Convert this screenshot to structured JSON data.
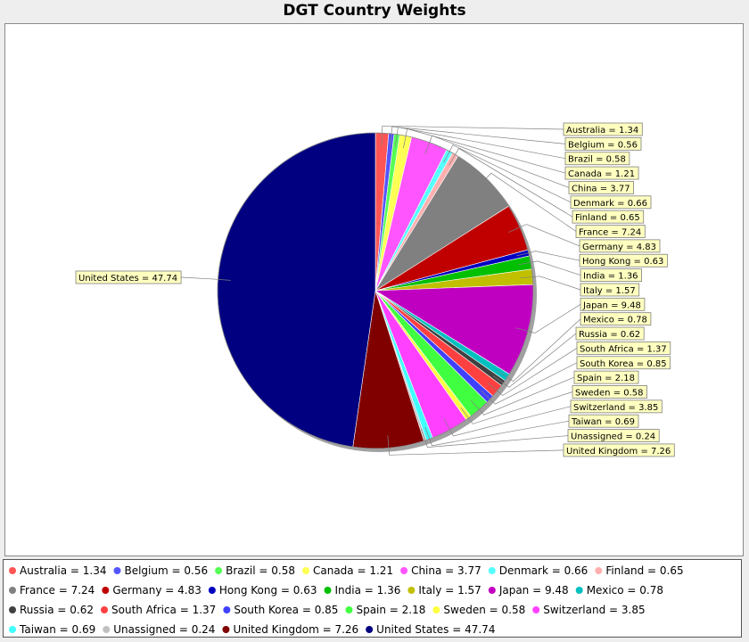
{
  "chart_data": {
    "type": "pie",
    "title": "DGT Country Weights",
    "slices": [
      {
        "label": "Australia",
        "value": 1.34,
        "color": "#ff5555"
      },
      {
        "label": "Belgium",
        "value": 0.56,
        "color": "#5555ff"
      },
      {
        "label": "Brazil",
        "value": 0.58,
        "color": "#55ff55"
      },
      {
        "label": "Canada",
        "value": 1.21,
        "color": "#ffff55"
      },
      {
        "label": "China",
        "value": 3.77,
        "color": "#ff55ff"
      },
      {
        "label": "Denmark",
        "value": 0.66,
        "color": "#55ffff"
      },
      {
        "label": "Finland",
        "value": 0.65,
        "color": "#ffafaf"
      },
      {
        "label": "France",
        "value": 7.24,
        "color": "#808080"
      },
      {
        "label": "Germany",
        "value": 4.83,
        "color": "#c00000"
      },
      {
        "label": "Hong Kong",
        "value": 0.63,
        "color": "#0000c0"
      },
      {
        "label": "India",
        "value": 1.36,
        "color": "#00c000"
      },
      {
        "label": "Italy",
        "value": 1.57,
        "color": "#c0c000"
      },
      {
        "label": "Japan",
        "value": 9.48,
        "color": "#c000c0"
      },
      {
        "label": "Mexico",
        "value": 0.78,
        "color": "#00c0c0"
      },
      {
        "label": "Russia",
        "value": 0.62,
        "color": "#404040"
      },
      {
        "label": "South Africa",
        "value": 1.37,
        "color": "#ff4040"
      },
      {
        "label": "South Korea",
        "value": 0.85,
        "color": "#4040ff"
      },
      {
        "label": "Spain",
        "value": 2.18,
        "color": "#40ff40"
      },
      {
        "label": "Sweden",
        "value": 0.58,
        "color": "#ffff40"
      },
      {
        "label": "Switzerland",
        "value": 3.85,
        "color": "#ff40ff"
      },
      {
        "label": "Taiwan",
        "value": 0.69,
        "color": "#40ffff"
      },
      {
        "label": "Unassigned",
        "value": 0.24,
        "color": "#c0c0c0"
      },
      {
        "label": "United Kingdom",
        "value": 7.26,
        "color": "#800000"
      },
      {
        "label": "United States",
        "value": 47.74,
        "color": "#000080"
      }
    ],
    "label_format": "{label} = {value}",
    "legend": "bottom"
  }
}
